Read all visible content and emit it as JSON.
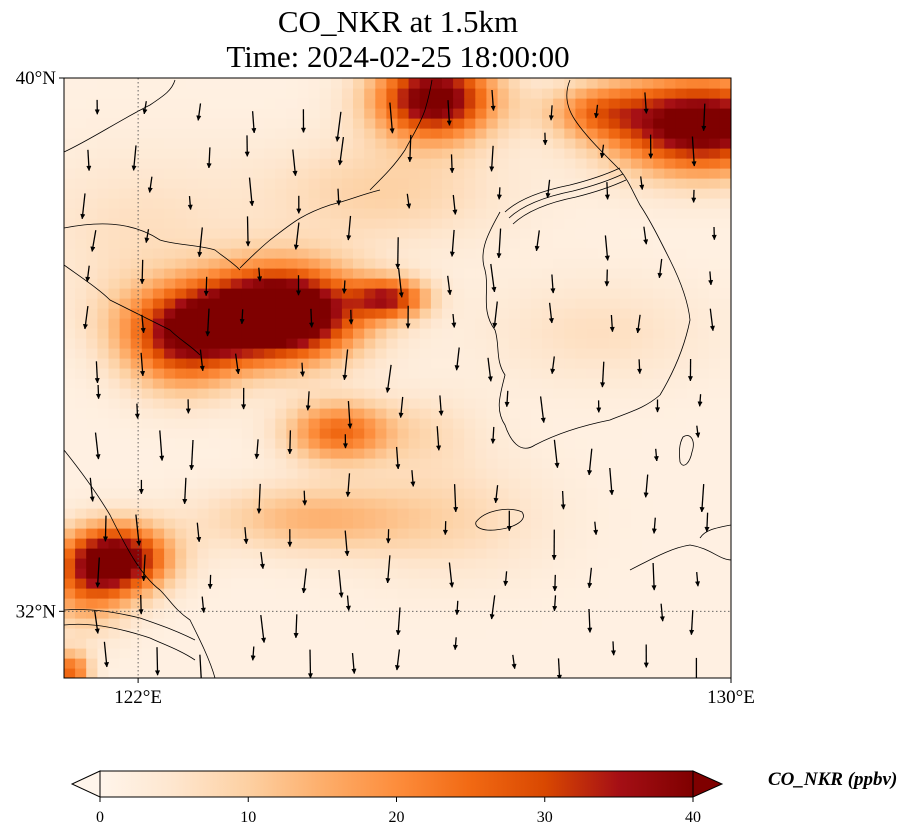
{
  "title": {
    "line1": "CO_NKR at 1.5km",
    "line2": "Time: 2024-02-25 18:00:00"
  },
  "map": {
    "lon_range": [
      121.0,
      130.0
    ],
    "lat_range": [
      31.0,
      40.0
    ],
    "gridlines": {
      "lons": [
        122
      ],
      "lats": [
        32
      ]
    },
    "lon_ticks": [
      {
        "value": 122,
        "label": "122°E"
      },
      {
        "value": 130,
        "label": "130°E"
      }
    ],
    "lat_ticks": [
      {
        "value": 40,
        "label": "40°N"
      },
      {
        "value": 32,
        "label": "32°N"
      }
    ],
    "field": "CO_NKR",
    "hotspots": [
      {
        "lon": 124.0,
        "lat": 36.5,
        "value": 42,
        "rlon": 1.0,
        "rlat": 0.7
      },
      {
        "lon": 122.6,
        "lat": 36.0,
        "value": 25,
        "rlon": 0.8,
        "rlat": 0.7
      },
      {
        "lon": 123.2,
        "lat": 36.4,
        "value": 22,
        "rlon": 1.3,
        "rlat": 0.6
      },
      {
        "lon": 124.7,
        "lat": 34.7,
        "value": 23,
        "rlon": 0.7,
        "rlat": 0.45
      },
      {
        "lon": 126.0,
        "lat": 39.7,
        "value": 42,
        "rlon": 0.8,
        "rlat": 0.6
      },
      {
        "lon": 125.4,
        "lat": 36.7,
        "value": 28,
        "rlon": 0.5,
        "rlat": 0.3
      },
      {
        "lon": 129.6,
        "lat": 39.3,
        "value": 44,
        "rlon": 1.2,
        "rlat": 0.7
      },
      {
        "lon": 128.2,
        "lat": 39.5,
        "value": 16,
        "rlon": 0.7,
        "rlat": 0.4
      },
      {
        "lon": 121.7,
        "lat": 32.8,
        "value": 42,
        "rlon": 0.7,
        "rlat": 0.5
      },
      {
        "lon": 121.3,
        "lat": 32.3,
        "value": 15,
        "rlon": 0.6,
        "rlat": 0.6
      },
      {
        "lon": 121.1,
        "lat": 31.1,
        "value": 24,
        "rlon": 0.25,
        "rlat": 0.3
      },
      {
        "lon": 124.3,
        "lat": 33.4,
        "value": 12,
        "rlon": 1.4,
        "rlat": 0.5
      },
      {
        "lon": 125.3,
        "lat": 38.3,
        "value": 8,
        "rlon": 1.6,
        "rlat": 0.8
      },
      {
        "lon": 122.0,
        "lat": 37.7,
        "value": 5,
        "rlon": 1.5,
        "rlat": 1.2
      },
      {
        "lon": 126.2,
        "lat": 33.4,
        "value": 6,
        "rlon": 1.4,
        "rlat": 0.9
      },
      {
        "lon": 128.2,
        "lat": 36.2,
        "value": 5,
        "rlon": 1.5,
        "rlat": 0.8
      },
      {
        "lon": 125.9,
        "lat": 34.7,
        "value": 5,
        "rlon": 0.8,
        "rlat": 0.6
      }
    ]
  },
  "colorbar": {
    "label": "CO_NKR (ppbv)",
    "min": 0,
    "max": 40,
    "ticks": [
      0,
      10,
      20,
      30,
      40
    ],
    "colors": [
      "#fff5eb",
      "#fee6ce",
      "#fdd0a2",
      "#fdae6b",
      "#fd8d3c",
      "#f16913",
      "#d94801",
      "#a50f15",
      "#7f0000"
    ],
    "extend": "both"
  }
}
